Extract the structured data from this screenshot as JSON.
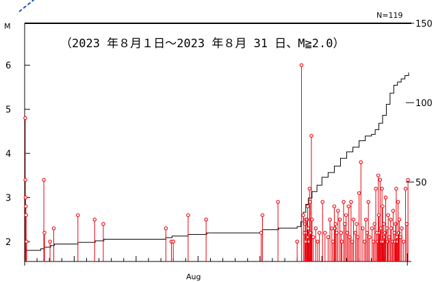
{
  "chart_data": {
    "type": "scatter",
    "title": "（2023 年８月１日～2023 年８月 31 日、M≧2.0）",
    "count_label": "N=119",
    "ylabel": "M",
    "xlabel": "Aug",
    "y_left_ticks": [
      "2",
      "3",
      "4",
      "5",
      "6"
    ],
    "y_right_ticks": [
      "50",
      "100",
      "150"
    ],
    "xlim": [
      1,
      32
    ],
    "ylim": [
      1.55,
      6.95
    ],
    "y_right_lim": [
      0,
      150
    ],
    "colors": {
      "stems": "#e8000b",
      "cumulative": "#000000",
      "decoration": "#1f4fbf"
    },
    "series": [
      {
        "name": "magnitude",
        "marker": "circle-stem",
        "x": [
          1.05,
          1.06,
          1.08,
          1.1,
          1.12,
          1.15,
          2.55,
          2.6,
          3.05,
          3.35,
          5.3,
          6.65,
          7.35,
          12.4,
          12.85,
          13.0,
          14.2,
          15.65,
          20.1,
          20.2,
          21.45,
          23.0,
          23.35,
          23.5,
          23.6,
          23.65,
          23.7,
          23.72,
          23.78,
          23.8,
          23.85,
          23.88,
          23.92,
          23.95,
          24.0,
          24.05,
          24.1,
          24.15,
          24.2,
          24.3,
          24.5,
          24.65,
          24.8,
          25.05,
          25.25,
          25.5,
          25.65,
          25.8,
          25.9,
          26.0,
          26.05,
          26.1,
          26.2,
          26.3,
          26.45,
          26.55,
          26.6,
          26.75,
          26.85,
          26.95,
          27.05,
          27.15,
          27.25,
          27.35,
          27.45,
          27.55,
          27.7,
          27.8,
          27.9,
          28.0,
          28.15,
          28.3,
          28.45,
          28.55,
          28.65,
          28.75,
          28.85,
          29.05,
          29.15,
          29.25,
          29.35,
          29.45,
          29.5,
          29.55,
          29.6,
          29.65,
          29.7,
          29.75,
          29.8,
          29.85,
          29.9,
          29.95,
          30.0,
          30.05,
          30.1,
          30.15,
          30.25,
          30.3,
          30.35,
          30.45,
          30.55,
          30.6,
          30.7,
          30.75,
          30.85,
          30.9,
          30.95,
          31.0,
          31.05,
          31.1,
          31.15,
          31.2,
          31.25,
          31.35,
          31.45,
          31.6,
          31.75,
          31.85,
          31.95
        ],
        "y": [
          4.8,
          3.4,
          3.0,
          2.8,
          2.6,
          2.0,
          3.4,
          2.2,
          2.0,
          2.3,
          2.6,
          2.5,
          2.4,
          2.3,
          2.0,
          2.0,
          2.6,
          2.5,
          2.2,
          2.6,
          2.9,
          2.0,
          6.0,
          2.6,
          2.2,
          2.4,
          2.5,
          2.0,
          2.2,
          2.5,
          2.8,
          2.1,
          2.3,
          2.0,
          3.2,
          2.9,
          2.2,
          4.4,
          2.5,
          2.1,
          2.3,
          2.0,
          2.2,
          2.9,
          2.2,
          2.1,
          2.5,
          2.3,
          2.0,
          2.8,
          2.3,
          2.4,
          2.2,
          2.7,
          2.5,
          2.2,
          2.0,
          2.9,
          2.4,
          2.6,
          2.2,
          2.8,
          2.1,
          2.9,
          2.0,
          2.5,
          2.2,
          2.4,
          2.1,
          3.1,
          3.8,
          2.3,
          2.0,
          2.5,
          2.2,
          2.9,
          2.1,
          2.3,
          2.0,
          2.4,
          3.2,
          2.2,
          2.0,
          3.5,
          2.6,
          2.2,
          3.4,
          2.3,
          2.0,
          3.2,
          2.8,
          2.0,
          2.4,
          2.1,
          2.2,
          3.0,
          2.3,
          2.0,
          2.6,
          2.1,
          2.5,
          2.3,
          2.0,
          2.7,
          2.2,
          2.0,
          2.4,
          3.2,
          2.1,
          2.0,
          2.9,
          2.2,
          2.5,
          2.1,
          2.3,
          2.0,
          3.2,
          2.4,
          3.4
        ]
      },
      {
        "name": "cumulative",
        "axis": "right",
        "x": [
          1.0,
          1.15,
          2.3,
          2.6,
          3.1,
          3.4,
          5.3,
          6.7,
          7.4,
          12.4,
          12.9,
          14.2,
          15.7,
          20.1,
          20.2,
          21.5,
          23.0,
          23.3,
          23.5,
          23.7,
          23.9,
          24.2,
          24.6,
          25.0,
          25.5,
          26.0,
          26.5,
          27.0,
          27.5,
          28.0,
          28.5,
          29.0,
          29.3,
          29.6,
          29.9,
          30.2,
          30.5,
          30.8,
          31.1,
          31.4,
          31.7,
          32.0
        ],
        "y": [
          6,
          7,
          8,
          9,
          10,
          11,
          12,
          13,
          14,
          15,
          16,
          17,
          18,
          19,
          20,
          21,
          22,
          25,
          31,
          36,
          40,
          44,
          48,
          53,
          56,
          60,
          65,
          69,
          72,
          76,
          79,
          80,
          83,
          87,
          92,
          99,
          106,
          111,
          113,
          115,
          117,
          119
        ]
      }
    ]
  }
}
